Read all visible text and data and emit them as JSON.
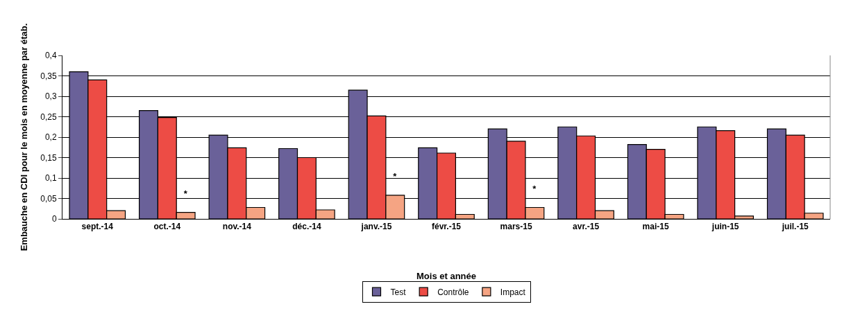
{
  "chart_data": {
    "type": "bar",
    "xlabel": "Mois et année",
    "ylabel": "Embauche en CDI pour le mois en moyenne par étab.",
    "categories": [
      "sept.-14",
      "oct.-14",
      "nov.-14",
      "déc.-14",
      "janv.-15",
      "févr.-15",
      "mars-15",
      "avr.-15",
      "mai-15",
      "juin-15",
      "juil.-15"
    ],
    "series": [
      {
        "name": "Test",
        "color": "#6a6199",
        "values": [
          0.36,
          0.265,
          0.205,
          0.172,
          0.315,
          0.174,
          0.22,
          0.225,
          0.182,
          0.225,
          0.22
        ]
      },
      {
        "name": "Contrôle",
        "color": "#ed4c45",
        "values": [
          0.34,
          0.248,
          0.174,
          0.15,
          0.252,
          0.161,
          0.19,
          0.203,
          0.17,
          0.216,
          0.205
        ]
      },
      {
        "name": "Impact",
        "color": "#f5a483",
        "values": [
          0.02,
          0.016,
          0.028,
          0.022,
          0.058,
          0.011,
          0.028,
          0.02,
          0.011,
          0.007,
          0.014
        ],
        "value_labels": [
          null,
          "*",
          null,
          null,
          "*",
          null,
          "*",
          null,
          null,
          null,
          null
        ]
      }
    ],
    "ylim": [
      0,
      0.4
    ],
    "yticks": [
      0,
      {
        "value": 0.05,
        "label": "0,05"
      },
      {
        "value": 0.1,
        "label": "0,1"
      },
      {
        "value": 0.15,
        "label": "0,15"
      },
      {
        "value": 0.2,
        "label": "0,2"
      },
      {
        "value": 0.25,
        "label": "0,25"
      },
      {
        "value": 0.3,
        "label": "0,3"
      },
      {
        "value": 0.35,
        "label": "0,35"
      },
      {
        "value": 0.4,
        "label": "0,4"
      }
    ],
    "grid": "y",
    "legend": "bottom"
  }
}
